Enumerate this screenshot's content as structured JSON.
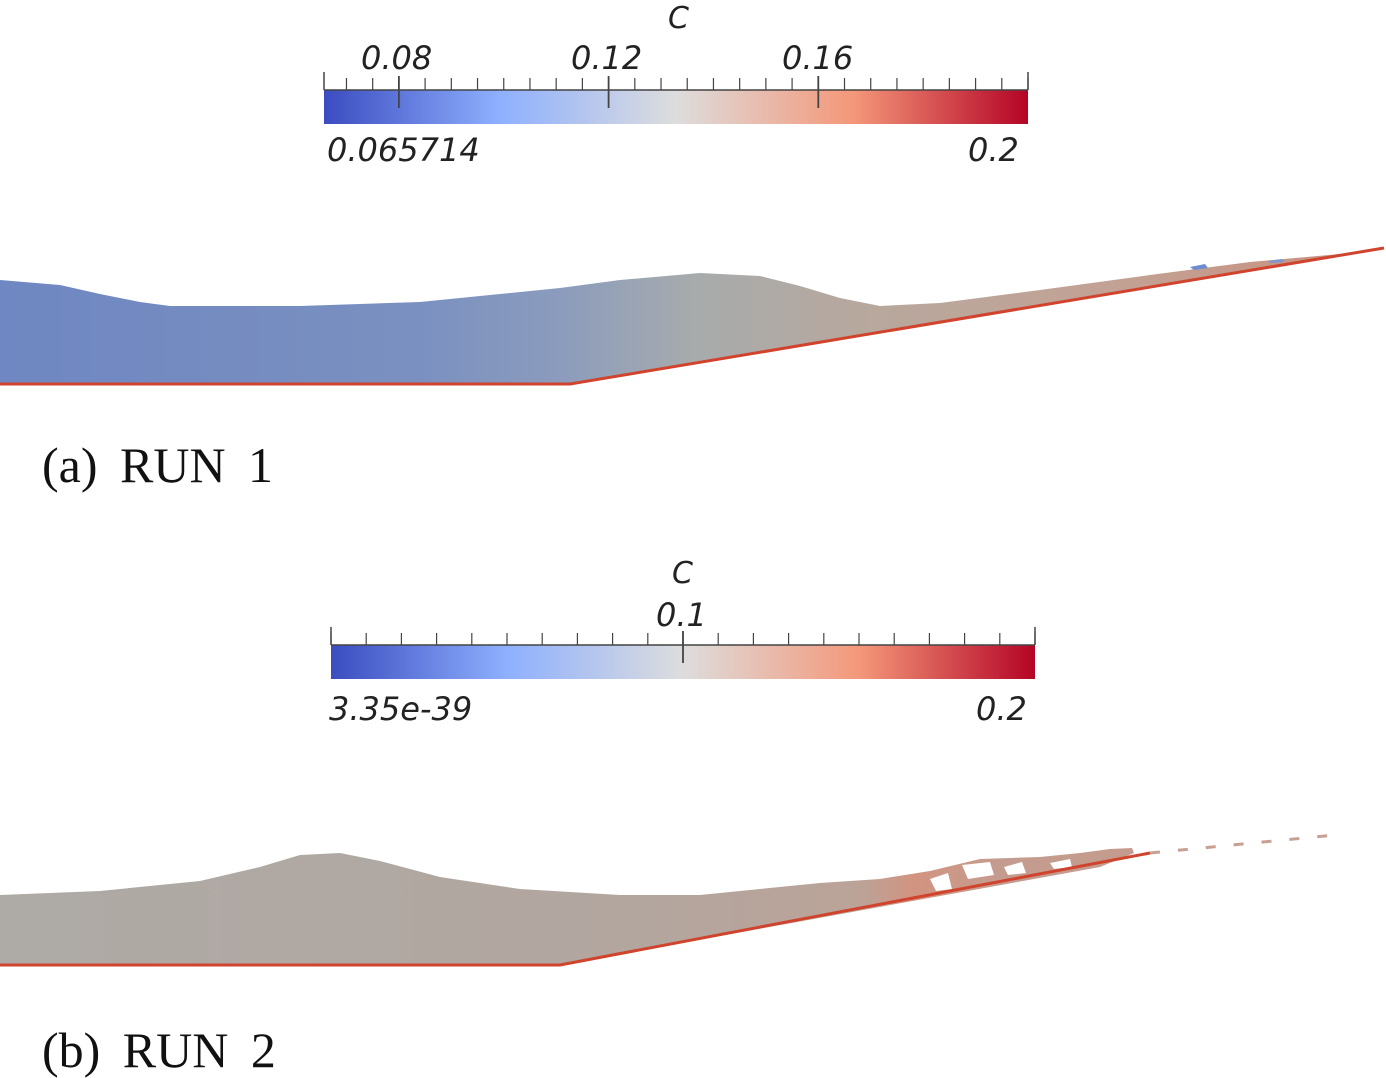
{
  "colormap": {
    "name": "Cool to Warm",
    "stops": [
      "#3b4cc0",
      "#8eb0fe",
      "#dddddd",
      "#f4987a",
      "#b40426"
    ]
  },
  "panels": [
    {
      "id": "a",
      "caption": "(a)  RUN  1",
      "colorbar": {
        "title": "C",
        "min_label": "0.065714",
        "max_label": "0.2",
        "min": 0.065714,
        "max": 0.2,
        "major_ticks": [
          {
            "value": 0.08,
            "label": "0.08"
          },
          {
            "value": 0.12,
            "label": "0.12"
          },
          {
            "value": 0.16,
            "label": "0.16"
          }
        ],
        "minor_step": 0.005
      }
    },
    {
      "id": "b",
      "caption": "(b)  RUN  2",
      "colorbar": {
        "title": "C",
        "min_label": "3.35e-39",
        "max_label": "0.2",
        "min": 0,
        "max": 0.2,
        "major_ticks": [
          {
            "value": 0.1,
            "label": "0.1"
          }
        ],
        "minor_step": 0.01
      }
    }
  ]
}
